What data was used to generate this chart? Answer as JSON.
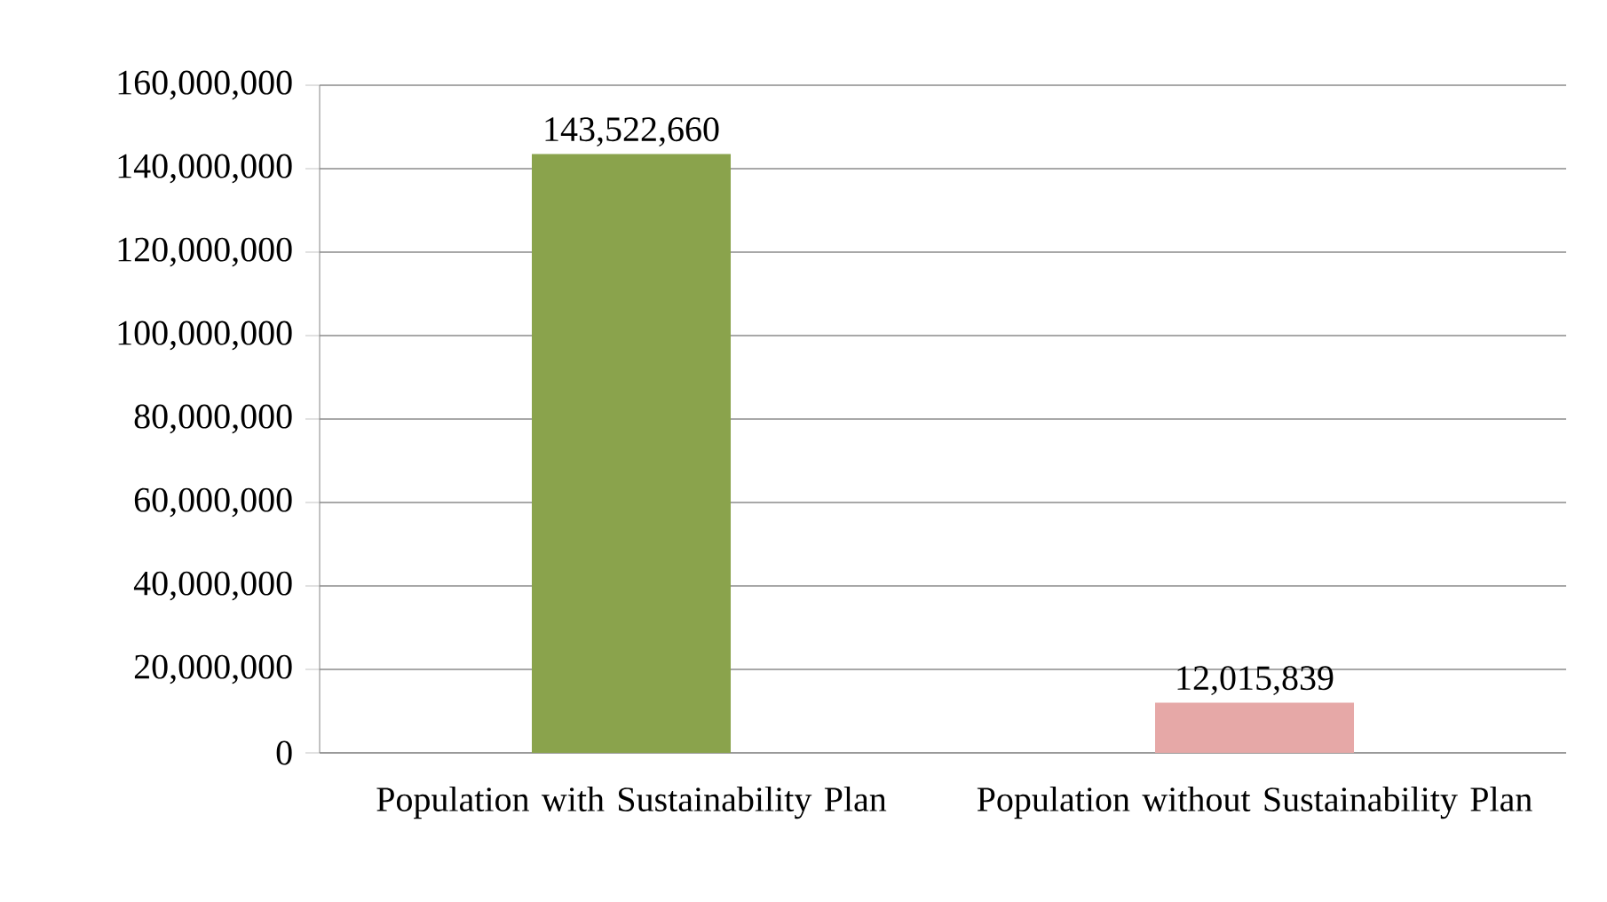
{
  "chart_data": {
    "type": "bar",
    "categories": [
      "Population with Sustainability Plan",
      "Population without Sustainability  Plan"
    ],
    "values": [
      143522660,
      12015839
    ],
    "colors": [
      "#8aa34c",
      "#e6a8a7"
    ],
    "value_labels": [
      "143,522,660",
      "12,015,839"
    ],
    "ylim": [
      0,
      160000000
    ],
    "yticks": [
      {
        "value": 0,
        "label": "0"
      },
      {
        "value": 20000000,
        "label": "20,000,000"
      },
      {
        "value": 40000000,
        "label": "40,000,000"
      },
      {
        "value": 60000000,
        "label": "60,000,000"
      },
      {
        "value": 80000000,
        "label": "80,000,000"
      },
      {
        "value": 100000000,
        "label": "100,000,000"
      },
      {
        "value": 120000000,
        "label": "120,000,000"
      },
      {
        "value": 140000000,
        "label": "140,000,000"
      },
      {
        "value": 160000000,
        "label": "160,000,000"
      }
    ],
    "grid": "y"
  }
}
